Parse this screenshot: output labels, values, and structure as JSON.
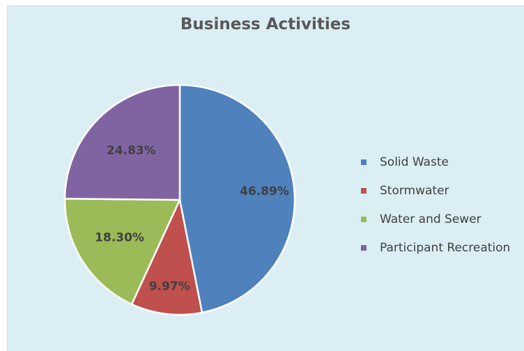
{
  "chart_data": {
    "type": "pie",
    "title": "Business Activities",
    "categories": [
      "Solid Waste",
      "Stormwater",
      "Water and Sewer",
      "Participant Recreation"
    ],
    "values": [
      46.89,
      9.97,
      18.3,
      24.83
    ],
    "data_labels": [
      "46.89%",
      "9.97%",
      "18.30%",
      "24.83%"
    ],
    "colors": [
      "#4f81bd",
      "#c0504d",
      "#9bbb59",
      "#8064a2"
    ],
    "start_angle": "12 o'clock",
    "direction": "clockwise",
    "legend_position": "right",
    "background_color": "#dbeef4"
  }
}
